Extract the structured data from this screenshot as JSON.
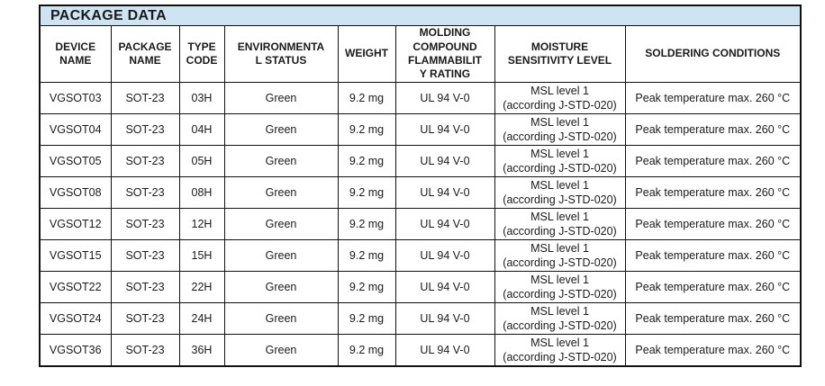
{
  "title": "PACKAGE DATA",
  "table": {
    "headers": [
      "DEVICE\nNAME",
      "PACKAGE\nNAME",
      "TYPE\nCODE",
      "ENVIRONMENTA\nL STATUS",
      "WEIGHT",
      "MOLDING\nCOMPOUND\nFLAMMABILIT\nY RATING",
      "MOISTURE\nSENSITIVITY LEVEL",
      "SOLDERING CONDITIONS"
    ],
    "rows": [
      [
        "VGSOT03",
        "SOT-23",
        "03H",
        "Green",
        "9.2 mg",
        "UL 94 V-0",
        "MSL level 1\n(according J-STD-020)",
        "Peak temperature max. 260 °C"
      ],
      [
        "VGSOT04",
        "SOT-23",
        "04H",
        "Green",
        "9.2 mg",
        "UL 94 V-0",
        "MSL level 1\n(according J-STD-020)",
        "Peak temperature max. 260 °C"
      ],
      [
        "VGSOT05",
        "SOT-23",
        "05H",
        "Green",
        "9.2 mg",
        "UL 94 V-0",
        "MSL level 1\n(according J-STD-020)",
        "Peak temperature max. 260 °C"
      ],
      [
        "VGSOT08",
        "SOT-23",
        "08H",
        "Green",
        "9.2 mg",
        "UL 94 V-0",
        "MSL level 1\n(according J-STD-020)",
        "Peak temperature max. 260 °C"
      ],
      [
        "VGSOT12",
        "SOT-23",
        "12H",
        "Green",
        "9.2 mg",
        "UL 94 V-0",
        "MSL level 1\n(according J-STD-020)",
        "Peak temperature max. 260 °C"
      ],
      [
        "VGSOT15",
        "SOT-23",
        "15H",
        "Green",
        "9.2 mg",
        "UL 94 V-0",
        "MSL level 1\n(according J-STD-020)",
        "Peak temperature max. 260 °C"
      ],
      [
        "VGSOT22",
        "SOT-23",
        "22H",
        "Green",
        "9.2 mg",
        "UL 94 V-0",
        "MSL level 1\n(according J-STD-020)",
        "Peak temperature max. 260 °C"
      ],
      [
        "VGSOT24",
        "SOT-23",
        "24H",
        "Green",
        "9.2 mg",
        "UL 94 V-0",
        "MSL level 1\n(according J-STD-020)",
        "Peak temperature max. 260 °C"
      ],
      [
        "VGSOT36",
        "SOT-23",
        "36H",
        "Green",
        "9.2 mg",
        "UL 94 V-0",
        "MSL level 1\n(according J-STD-020)",
        "Peak temperature max. 260 °C"
      ]
    ]
  },
  "colors": {
    "title_bg": "#cfe4f2",
    "border": "#111111",
    "text": "#1a1a1a"
  }
}
